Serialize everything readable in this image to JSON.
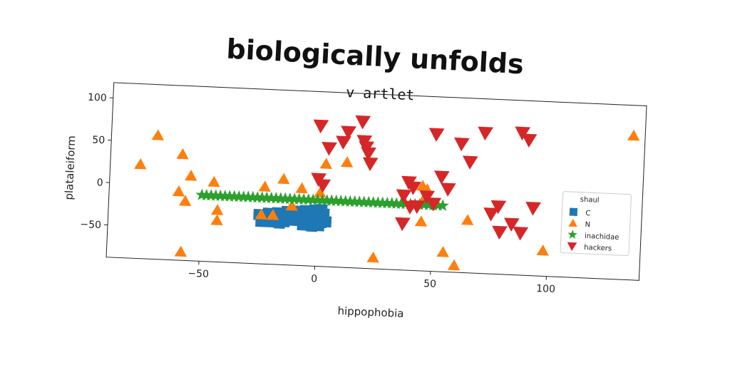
{
  "chart_data": {
    "type": "scatter",
    "suptitle": "biologically unfolds",
    "title": "v artlet",
    "xlabel": "hippophobia",
    "ylabel": "plataleiform",
    "xlim": [
      -90,
      140
    ],
    "ylim": [
      -88,
      118
    ],
    "xticks": [
      -50,
      0,
      50,
      100
    ],
    "yticks": [
      -50,
      0,
      50,
      100
    ],
    "xtick_labels": [
      "−50",
      "0",
      "50",
      "100"
    ],
    "ytick_labels": [
      "−50",
      "0",
      "50",
      "100"
    ],
    "grid": false,
    "legend": {
      "title": "shaul",
      "placement": "center-right",
      "entries": [
        "C",
        "N",
        "inachidae",
        "hackers"
      ]
    },
    "colors": {
      "C": "#1f77b4",
      "N": "#ff7f0e",
      "inachidae": "#2ca02c",
      "hackers": "#d62728"
    },
    "series": [
      {
        "name": "C",
        "marker": "square",
        "points": [
          [
            -24,
            -38
          ],
          [
            -22,
            -37
          ],
          [
            -20,
            -38
          ],
          [
            -18,
            -36
          ],
          [
            -16,
            -39
          ],
          [
            -14,
            -37
          ],
          [
            -12,
            -34
          ],
          [
            -10,
            -35
          ],
          [
            -8,
            -33
          ],
          [
            -6,
            -31
          ],
          [
            -4,
            -33
          ],
          [
            -2,
            -32
          ],
          [
            0,
            -34
          ],
          [
            2,
            -36
          ],
          [
            4,
            -35
          ],
          [
            -23,
            -33
          ],
          [
            -19,
            -31
          ],
          [
            -15,
            -32
          ],
          [
            -11,
            -29
          ],
          [
            -7,
            -28
          ],
          [
            -3,
            -27
          ],
          [
            1,
            -28
          ],
          [
            3,
            -26
          ],
          [
            -21,
            -28
          ],
          [
            -17,
            -27
          ],
          [
            -13,
            -25
          ],
          [
            -9,
            -24
          ],
          [
            -5,
            -23
          ],
          [
            -1,
            -22
          ],
          [
            2,
            -21
          ],
          [
            -25,
            -30
          ],
          [
            -6,
            -40
          ],
          [
            -2,
            -41
          ],
          [
            1,
            -40
          ]
        ]
      },
      {
        "name": "N",
        "marker": "triangle-up",
        "points": [
          [
            -77,
            23
          ],
          [
            -70,
            58
          ],
          [
            -60,
            -7
          ],
          [
            -59,
            37
          ],
          [
            -57,
            -18
          ],
          [
            -55,
            12
          ],
          [
            -58,
            -78
          ],
          [
            -45,
            6
          ],
          [
            -43,
            -27
          ],
          [
            -43,
            -39
          ],
          [
            -24,
            -30
          ],
          [
            -23,
            3
          ],
          [
            -19,
            -30
          ],
          [
            -15,
            13
          ],
          [
            -11,
            -18
          ],
          [
            -7,
            3
          ],
          [
            1,
            -1
          ],
          [
            3,
            33
          ],
          [
            12,
            36
          ],
          [
            25,
            -75
          ],
          [
            45,
            12
          ],
          [
            47,
            8
          ],
          [
            46,
            -2
          ],
          [
            45,
            -30
          ],
          [
            55,
            -65
          ],
          [
            60,
            -80
          ],
          [
            65,
            -26
          ],
          [
            98,
            -58
          ],
          [
            135,
            82
          ]
        ]
      },
      {
        "name": "inachidae",
        "marker": "star",
        "points": [
          [
            -50,
            -10
          ],
          [
            -48,
            -10
          ],
          [
            -46,
            -10
          ],
          [
            -44,
            -10
          ],
          [
            -42,
            -10
          ],
          [
            -40,
            -10
          ],
          [
            -38,
            -10
          ],
          [
            -36,
            -10
          ],
          [
            -34,
            -10
          ],
          [
            -32,
            -10
          ],
          [
            -30,
            -10
          ],
          [
            -28,
            -10
          ],
          [
            -26,
            -10
          ],
          [
            -24,
            -10
          ],
          [
            -22,
            -10
          ],
          [
            -20,
            -10
          ],
          [
            -18,
            -10
          ],
          [
            -16,
            -10
          ],
          [
            -14,
            -10
          ],
          [
            -12,
            -10
          ],
          [
            -10,
            -10
          ],
          [
            -8,
            -10
          ],
          [
            -6,
            -10
          ],
          [
            -4,
            -10
          ],
          [
            -2,
            -10
          ],
          [
            0,
            -10
          ],
          [
            2,
            -10
          ],
          [
            4,
            -10
          ],
          [
            6,
            -10
          ],
          [
            8,
            -10
          ],
          [
            10,
            -10
          ],
          [
            12,
            -10
          ],
          [
            14,
            -10
          ],
          [
            16,
            -10
          ],
          [
            18,
            -10
          ],
          [
            20,
            -10
          ],
          [
            22,
            -10
          ],
          [
            24,
            -10
          ],
          [
            26,
            -10
          ],
          [
            28,
            -10
          ],
          [
            30,
            -10
          ],
          [
            32,
            -10
          ],
          [
            34,
            -10
          ],
          [
            36,
            -10
          ],
          [
            38,
            -10
          ],
          [
            40,
            -10
          ],
          [
            42,
            -10
          ],
          [
            44,
            -10
          ],
          [
            46,
            -10
          ],
          [
            48,
            -10
          ],
          [
            50,
            -10
          ],
          [
            52,
            -10
          ],
          [
            54,
            -10
          ]
        ]
      },
      {
        "name": "hackers",
        "marker": "triangle-down",
        "points": [
          [
            0,
            78
          ],
          [
            4,
            52
          ],
          [
            0,
            15
          ],
          [
            2,
            8
          ],
          [
            10,
            60
          ],
          [
            12,
            72
          ],
          [
            18,
            85
          ],
          [
            19,
            62
          ],
          [
            20,
            55
          ],
          [
            21,
            48
          ],
          [
            22,
            36
          ],
          [
            37,
            0
          ],
          [
            39,
            16
          ],
          [
            41,
            10
          ],
          [
            37,
            -33
          ],
          [
            40,
            -13
          ],
          [
            43,
            -12
          ],
          [
            50,
            -8
          ],
          [
            47,
            0
          ],
          [
            50,
            74
          ],
          [
            53,
            24
          ],
          [
            56,
            10
          ],
          [
            61,
            64
          ],
          [
            65,
            43
          ],
          [
            71,
            78
          ],
          [
            75,
            -17
          ],
          [
            78,
            -8
          ],
          [
            79,
            -38
          ],
          [
            84,
            -28
          ],
          [
            87,
            80
          ],
          [
            90,
            72
          ],
          [
            88,
            -38
          ],
          [
            93,
            -8
          ]
        ]
      }
    ]
  }
}
